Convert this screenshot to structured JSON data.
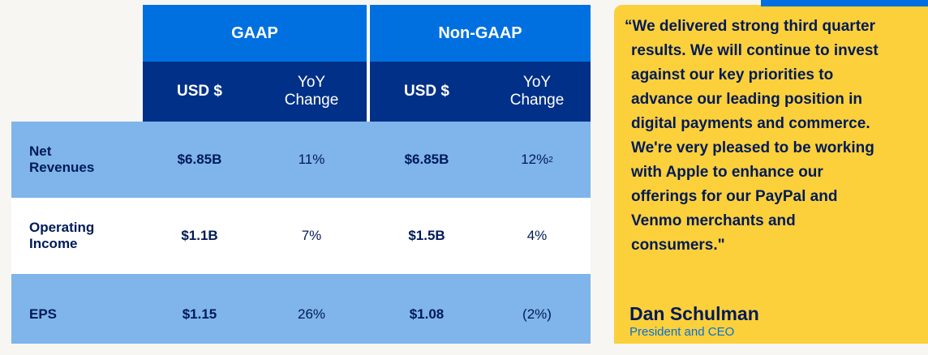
{
  "table": {
    "group_headers": [
      "GAAP",
      "Non-GAAP"
    ],
    "sub_headers": {
      "usd": "USD $",
      "yoy_line1": "YoY",
      "yoy_line2": "Change"
    },
    "rows": [
      {
        "label_line1": "Net",
        "label_line2": "Revenues",
        "gaap_usd": "$6.85B",
        "gaap_yoy": "11%",
        "nongaap_usd": "$6.85B",
        "nongaap_yoy": "12%",
        "nongaap_yoy_footnote": "2"
      },
      {
        "label_line1": "Operating",
        "label_line2": "Income",
        "gaap_usd": "$1.1B",
        "gaap_yoy": "7%",
        "nongaap_usd": "$1.5B",
        "nongaap_yoy": "4%"
      },
      {
        "label_line1": "EPS",
        "gaap_usd": "$1.15",
        "gaap_yoy": "26%",
        "nongaap_usd": "$1.08",
        "nongaap_yoy": "(2%)"
      }
    ]
  },
  "quote": {
    "lines": [
      "“We delivered strong third quarter",
      "results. We will continue to invest",
      "against our key priorities to",
      "advance our leading position in",
      "digital payments and commerce.",
      "We're very pleased to be working",
      "with Apple to enhance our",
      "offerings for our PayPal and",
      "Venmo merchants and",
      "consumers.\""
    ],
    "speaker_name": "Dan Schulman",
    "speaker_title": "President and CEO"
  },
  "colors": {
    "header_blue": "#0070e0",
    "subheader_navy": "#003087",
    "row_light_blue": "#7fb5ea",
    "quote_yellow": "#fcd03a",
    "text_navy": "#001a57"
  }
}
